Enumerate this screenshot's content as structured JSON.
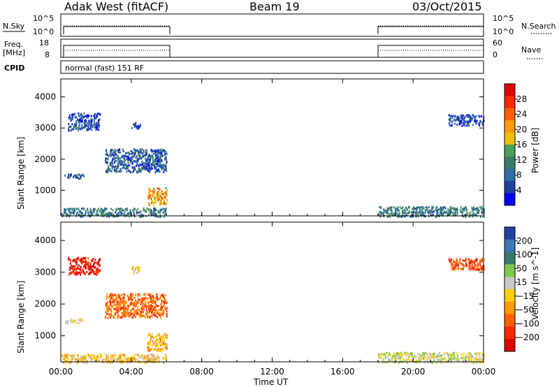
{
  "header": {
    "station": "Adak West (fitACF)",
    "beam": "Beam 19",
    "date": "03/Oct/2015"
  },
  "top_panels": {
    "nsky_label": "N.Sky",
    "nsky_ticks": [
      "10^5",
      "10^0"
    ],
    "nsearch_label": "N.Search",
    "nsearch_ticks": [
      "10^5",
      "10^0"
    ],
    "freq_label": "Freq.",
    "freq_unit": "[MHz]",
    "freq_ticks": [
      "18",
      "8"
    ],
    "nave_label": "Nave",
    "nave_ticks": [
      "60",
      "0"
    ],
    "cpid_label": "CPID",
    "cpid_text": "normal (fast) 151 RF"
  },
  "colors": {
    "power_scale": [
      "#0000ff",
      "#2040a0",
      "#2e6fa8",
      "#3a7a6a",
      "#49a05a",
      "#f0c000",
      "#ff9a00",
      "#ff6000",
      "#ff2a00",
      "#e00000"
    ],
    "velocity_scale": [
      "#2040a0",
      "#3a78b8",
      "#3a7a6a",
      "#7ec850",
      "#c8c8c8",
      "#ffd000",
      "#ff9a00",
      "#ff6000",
      "#ff2a00",
      "#e00000"
    ]
  },
  "chart_data": [
    {
      "type": "heatmap",
      "title": "Power",
      "xlabel": "",
      "ylabel": "Slant Range [km]",
      "colorbar_label": "Power [dB]",
      "colorbar_ticks": [
        "28",
        "24",
        "20",
        "16",
        "12",
        "8",
        "4"
      ],
      "colorbar_range": [
        0,
        32
      ],
      "x_ticks": [
        "00:00",
        "04:00",
        "08:00",
        "12:00",
        "16:00",
        "20:00",
        "00:00"
      ],
      "xlim_hours": [
        0,
        24
      ],
      "y_ticks": [
        "4000",
        "3000",
        "2000",
        "1000"
      ],
      "ylim_km": [
        180,
        4575
      ],
      "data_windows_hours": [
        [
          0,
          6
        ],
        [
          18,
          24
        ]
      ],
      "features": [
        {
          "desc": "far range scatter",
          "t": [
            0.4,
            2.2
          ],
          "range_km": [
            2950,
            3500
          ],
          "dB": 6
        },
        {
          "desc": "far range patch",
          "t": [
            4.0,
            4.5
          ],
          "range_km": [
            3000,
            3200
          ],
          "dB": 5
        },
        {
          "desc": "scatter band",
          "t": [
            2.5,
            6.0
          ],
          "range_km": [
            1600,
            2350
          ],
          "dB": 7
        },
        {
          "desc": "mid patch",
          "t": [
            0.2,
            1.3
          ],
          "range_km": [
            1400,
            1550
          ],
          "dB": 7
        },
        {
          "desc": "near range enhancement",
          "t": [
            4.9,
            6.0
          ],
          "range_km": [
            550,
            1100
          ],
          "dB": 20
        },
        {
          "desc": "ground/near scatter",
          "t": [
            0,
            6
          ],
          "range_km": [
            180,
            450
          ],
          "dB": 10
        },
        {
          "desc": "ground/near scatter",
          "t": [
            18,
            24
          ],
          "range_km": [
            180,
            500
          ],
          "dB": 10
        },
        {
          "desc": "late scatter",
          "t": [
            22.0,
            24.0
          ],
          "range_km": [
            3100,
            3450
          ],
          "dB": 5
        }
      ]
    },
    {
      "type": "heatmap",
      "title": "Velocity",
      "xlabel": "Time UT",
      "ylabel": "Slant Range [km]",
      "colorbar_label": "Velocity [m s^-1]",
      "colorbar_ticks": [
        "200",
        "100",
        "50",
        "15",
        "−15",
        "−50",
        "−100",
        "−200"
      ],
      "colorbar_range": [
        -250,
        250
      ],
      "x_ticks": [
        "00:00",
        "04:00",
        "08:00",
        "12:00",
        "16:00",
        "20:00",
        "00:00"
      ],
      "xlim_hours": [
        0,
        24
      ],
      "y_ticks": [
        "4000",
        "3000",
        "2000",
        "1000"
      ],
      "ylim_km": [
        180,
        4575
      ],
      "data_windows_hours": [
        [
          0,
          6
        ],
        [
          18,
          24
        ]
      ],
      "features": [
        {
          "desc": "far range scatter",
          "t": [
            0.4,
            2.2
          ],
          "range_km": [
            2950,
            3500
          ],
          "v": -200
        },
        {
          "desc": "far range patch",
          "t": [
            4.0,
            4.5
          ],
          "range_km": [
            3000,
            3200
          ],
          "v": -30
        },
        {
          "desc": "scatter band",
          "t": [
            2.5,
            6.0
          ],
          "range_km": [
            1600,
            2350
          ],
          "v": -120
        },
        {
          "desc": "mid patch",
          "t": [
            0.2,
            1.3
          ],
          "range_km": [
            1400,
            1550
          ],
          "v": 0
        },
        {
          "desc": "near range enhancement",
          "t": [
            4.9,
            6.0
          ],
          "range_km": [
            550,
            1100
          ],
          "v": -50
        },
        {
          "desc": "ground/near scatter",
          "t": [
            0,
            6
          ],
          "range_km": [
            180,
            450
          ],
          "v": -30
        },
        {
          "desc": "ground/near scatter",
          "t": [
            18,
            24
          ],
          "range_km": [
            180,
            500
          ],
          "v": 20
        },
        {
          "desc": "late scatter",
          "t": [
            22.0,
            24.0
          ],
          "range_km": [
            3100,
            3450
          ],
          "v": -150
        }
      ]
    }
  ]
}
